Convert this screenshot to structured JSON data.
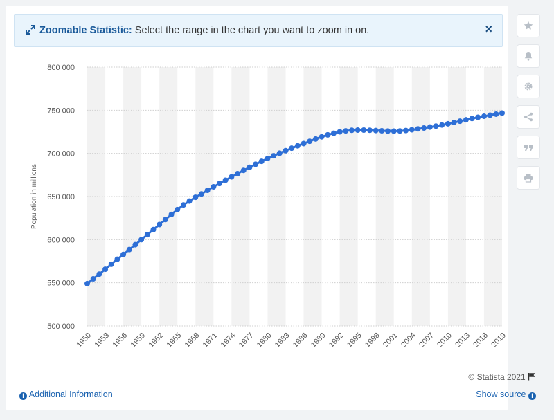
{
  "banner": {
    "title": "Zoomable Statistic:",
    "text": " Select the range in the chart you want to zoom in on.",
    "close_label": "×"
  },
  "toolbar": {
    "items": [
      "star-icon",
      "bell-icon",
      "gear-icon",
      "share-icon",
      "quote-icon",
      "print-icon"
    ]
  },
  "footer": {
    "credit": "© Statista 2021",
    "additional_info": "Additional Information",
    "show_source": "Show source"
  },
  "colors": {
    "line": "#2e6fd6",
    "band": "#f2f2f2",
    "grid": "#cfcfcf"
  },
  "chart_data": {
    "type": "line",
    "title": "",
    "xlabel": "",
    "ylabel": "Population in millions",
    "ylim": [
      500000,
      800000
    ],
    "yticks": [
      500000,
      550000,
      600000,
      650000,
      700000,
      750000,
      800000
    ],
    "ytick_labels": [
      "500 000",
      "550 000",
      "600 000",
      "650 000",
      "700 000",
      "750 000",
      "800 000"
    ],
    "xtick_labels": [
      "1950",
      "1953",
      "1956",
      "1959",
      "1962",
      "1965",
      "1968",
      "1971",
      "1974",
      "1977",
      "1980",
      "1983",
      "1986",
      "1989",
      "1992",
      "1995",
      "1998",
      "2001",
      "2004",
      "2007",
      "2010",
      "2013",
      "2016",
      "2019"
    ],
    "grid": true,
    "x": [
      1950,
      1951,
      1952,
      1953,
      1954,
      1955,
      1956,
      1957,
      1958,
      1959,
      1960,
      1961,
      1962,
      1963,
      1964,
      1965,
      1966,
      1967,
      1968,
      1969,
      1970,
      1971,
      1972,
      1973,
      1974,
      1975,
      1976,
      1977,
      1978,
      1979,
      1980,
      1981,
      1982,
      1983,
      1984,
      1985,
      1986,
      1987,
      1988,
      1989,
      1990,
      1991,
      1992,
      1993,
      1994,
      1995,
      1996,
      1997,
      1998,
      1999,
      2000,
      2001,
      2002,
      2003,
      2004,
      2005,
      2006,
      2007,
      2008,
      2009,
      2010,
      2011,
      2012,
      2013,
      2014,
      2015,
      2016,
      2017,
      2018,
      2019
    ],
    "series": [
      {
        "values": [
          549000,
          554500,
          560000,
          565700,
          571500,
          577300,
          582800,
          588500,
          594200,
          600000,
          605800,
          611700,
          617500,
          623300,
          629200,
          634900,
          640200,
          644700,
          649100,
          653000,
          657200,
          661200,
          665100,
          668900,
          672800,
          676500,
          680300,
          683900,
          687400,
          690800,
          694100,
          697200,
          700200,
          703100,
          706000,
          708800,
          711400,
          714000,
          716700,
          719200,
          721500,
          723300,
          725000,
          726100,
          726800,
          727000,
          727000,
          726800,
          726500,
          726200,
          725900,
          725800,
          726000,
          726500,
          727400,
          728400,
          729400,
          730500,
          731600,
          732900,
          734300,
          735800,
          737300,
          738900,
          740400,
          741800,
          743000,
          744300,
          745500,
          746700
        ]
      }
    ]
  }
}
